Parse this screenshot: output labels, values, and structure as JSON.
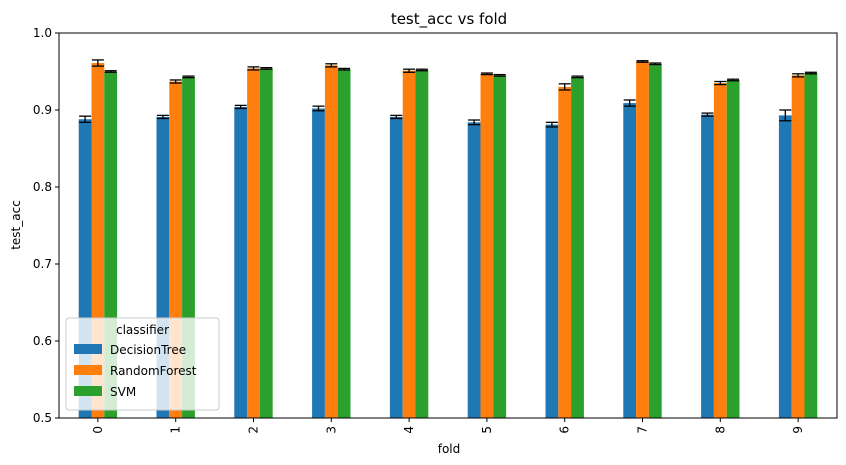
{
  "chart_data": {
    "type": "bar",
    "title": "test_acc vs fold",
    "xlabel": "fold",
    "ylabel": "test_acc",
    "categories": [
      "0",
      "1",
      "2",
      "3",
      "4",
      "5",
      "6",
      "7",
      "8",
      "9"
    ],
    "ylim": [
      0.5,
      1.0
    ],
    "yticks": [
      "0.5",
      "0.6",
      "0.7",
      "0.8",
      "0.9",
      "1.0"
    ],
    "grid": false,
    "legend": {
      "title": "classifier",
      "placement": "lower-left"
    },
    "series": [
      {
        "name": "DecisionTree",
        "color": "#1f77b4",
        "values": [
          0.888,
          0.891,
          0.904,
          0.902,
          0.891,
          0.884,
          0.881,
          0.909,
          0.894,
          0.893
        ],
        "errors": [
          0.004,
          0.002,
          0.002,
          0.003,
          0.002,
          0.003,
          0.003,
          0.004,
          0.002,
          0.007
        ]
      },
      {
        "name": "RandomForest",
        "color": "#ff7f0e",
        "values": [
          0.961,
          0.937,
          0.954,
          0.958,
          0.951,
          0.947,
          0.93,
          0.963,
          0.935,
          0.945
        ],
        "errors": [
          0.004,
          0.002,
          0.002,
          0.002,
          0.002,
          0.001,
          0.004,
          0.001,
          0.002,
          0.002
        ]
      },
      {
        "name": "SVM",
        "color": "#2ca02c",
        "values": [
          0.95,
          0.943,
          0.954,
          0.953,
          0.952,
          0.945,
          0.943,
          0.96,
          0.939,
          0.948
        ],
        "errors": [
          0.001,
          0.001,
          0.001,
          0.001,
          0.001,
          0.001,
          0.001,
          0.001,
          0.001,
          0.001
        ]
      }
    ]
  }
}
